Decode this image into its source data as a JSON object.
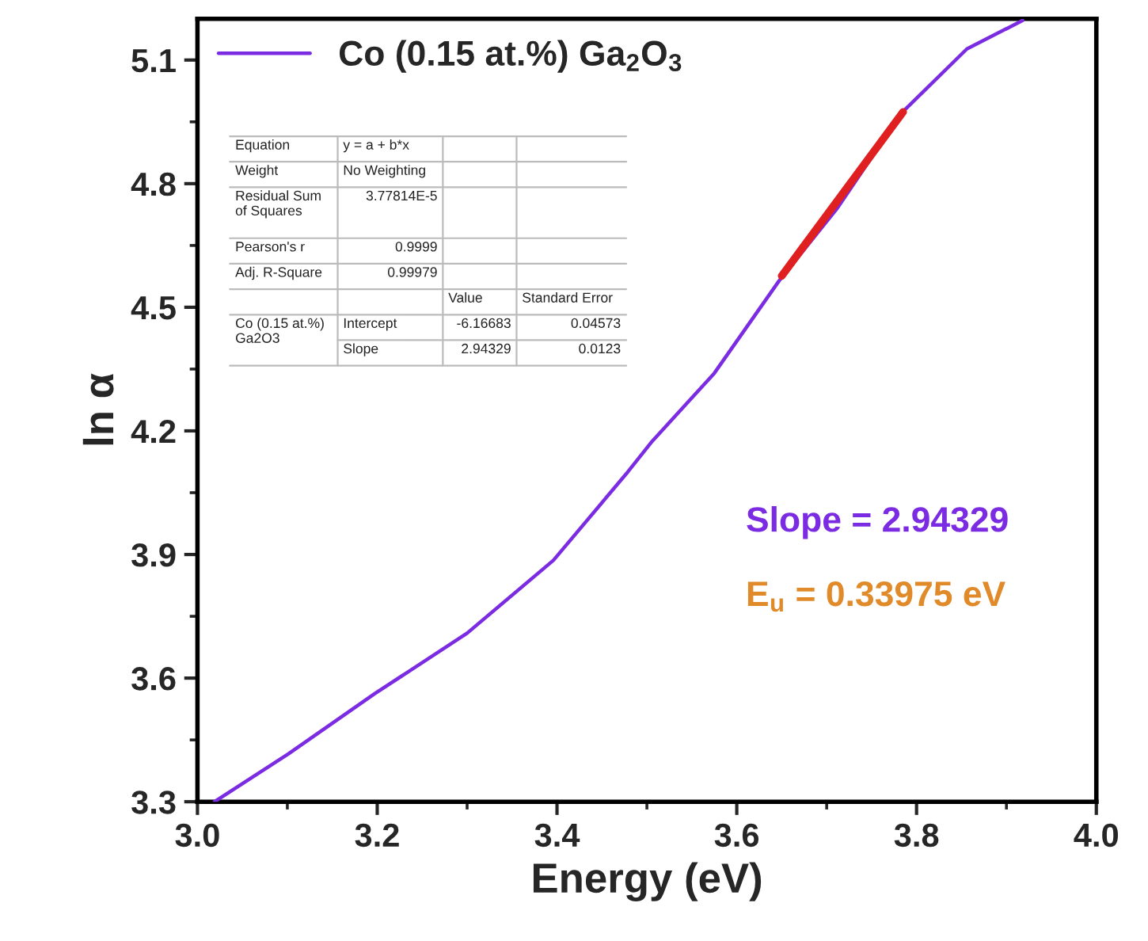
{
  "chart_data": {
    "type": "line",
    "xlabel": "Energy (eV)",
    "ylabel": "ln α",
    "xlim": [
      3.0,
      4.0
    ],
    "xticks": [
      {
        "value": 3,
        "label": "3.0"
      },
      3.2,
      3.4,
      3.6,
      3.8,
      {
        "value": 4,
        "label": "4.0"
      }
    ],
    "ylim": [
      3.3,
      5.2
    ],
    "yticks": [
      3.3,
      3.6,
      3.9,
      4.2,
      4.5,
      4.8,
      5.1
    ],
    "legend": "top left",
    "grid": false,
    "series": [
      {
        "name": "Co (0.15 at.%) Ga$_{2}$O$_{3}$",
        "color": "#7b2be2",
        "x": [
          3.019,
          3.101,
          3.197,
          3.3,
          3.396,
          3.479,
          3.506,
          3.575,
          3.647,
          3.712,
          3.784,
          3.856,
          3.918
        ],
        "values": [
          3.3,
          3.416,
          3.562,
          3.709,
          3.886,
          4.101,
          4.175,
          4.34,
          4.564,
          4.741,
          4.973,
          5.127,
          5.196
        ]
      },
      {
        "color": "#e02020",
        "x": [
          3.65,
          3.785
        ],
        "values": [
          4.576,
          4.974
        ]
      }
    ],
    "annotations": [
      "Equation",
      "y = a + b*x",
      "Weight",
      "No Weighting",
      "Residual Sum\nof Squares",
      "3.77814E-5",
      "Pearson's r",
      "0.9999",
      "Adj. R-Square",
      "0.99979",
      "Value",
      "Standard Error",
      "Co (0.15 at.%)\nGa2O3",
      "Intercept",
      "-6.16683",
      "0.04573",
      "Slope",
      "2.94329",
      "0.0123",
      "Slope = 2.94329",
      "E$_{u}$ = 0.33975 eV"
    ]
  }
}
